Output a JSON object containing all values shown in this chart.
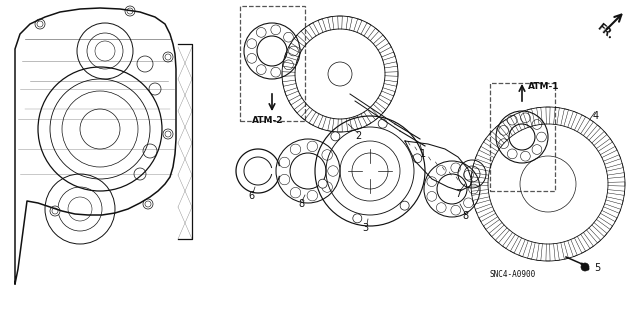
{
  "bg_color": "#ffffff",
  "fig_width": 6.4,
  "fig_height": 3.19,
  "dpi": 100,
  "line_color": "#111111",
  "text_color": "#111111",
  "dashed_box_color": "#555555",
  "atm2_label": "ATM-2",
  "atm1_label": "ATM-1",
  "fr_label": "FR.",
  "snc4_label": "SNC4-A0900",
  "part_numbers": [
    "1",
    "2",
    "3",
    "4",
    "5",
    "6",
    "7",
    "8",
    "8"
  ]
}
